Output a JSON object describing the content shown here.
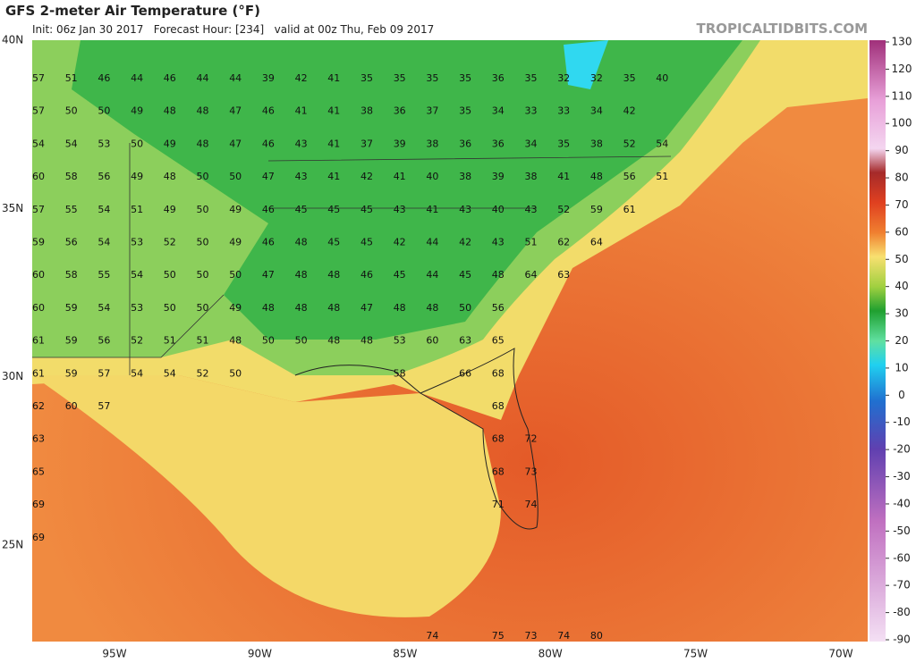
{
  "header": {
    "title": "GFS 2-meter Air Temperature (°F)",
    "subtitle": "Init: 06z Jan 30 2017   Forecast Hour: [234]   valid at 00z Thu, Feb 09 2017",
    "site": "TROPICALTIDBITS.COM"
  },
  "map": {
    "lat_labels": [
      "40N",
      "35N",
      "30N",
      "25N"
    ],
    "lon_labels": [
      "95W",
      "90W",
      "85W",
      "80W",
      "75W",
      "70W"
    ],
    "temperature_grid": [
      [
        57,
        51,
        46,
        44,
        46,
        44,
        44,
        39,
        42,
        41,
        35,
        35,
        35,
        35,
        36,
        35,
        32,
        32,
        35,
        40
      ],
      [
        57,
        50,
        50,
        49,
        48,
        48,
        47,
        46,
        41,
        41,
        38,
        36,
        37,
        35,
        34,
        33,
        33,
        34,
        42
      ],
      [
        54,
        54,
        53,
        50,
        49,
        48,
        47,
        46,
        43,
        41,
        37,
        39,
        38,
        36,
        36,
        34,
        35,
        38,
        52,
        54
      ],
      [
        60,
        58,
        56,
        49,
        48,
        50,
        50,
        47,
        43,
        41,
        42,
        41,
        40,
        38,
        39,
        38,
        41,
        48,
        56,
        51
      ],
      [
        57,
        55,
        54,
        51,
        49,
        50,
        49,
        46,
        45,
        45,
        45,
        43,
        41,
        43,
        40,
        43,
        52,
        59,
        61
      ],
      [
        59,
        56,
        54,
        53,
        52,
        50,
        49,
        46,
        48,
        45,
        45,
        42,
        44,
        42,
        43,
        51,
        62,
        64
      ],
      [
        60,
        58,
        55,
        54,
        50,
        50,
        50,
        47,
        48,
        48,
        46,
        45,
        44,
        45,
        48,
        64,
        63
      ],
      [
        60,
        59,
        54,
        53,
        50,
        50,
        49,
        48,
        48,
        48,
        47,
        48,
        48,
        50,
        56
      ],
      [
        61,
        59,
        56,
        52,
        51,
        51,
        48,
        50,
        50,
        48,
        48,
        53,
        60,
        63,
        65
      ],
      [
        61,
        59,
        57,
        54,
        54,
        52,
        50,
        null,
        null,
        null,
        null,
        58,
        null,
        66,
        68
      ],
      [
        62,
        60,
        57,
        null,
        null,
        null,
        null,
        null,
        null,
        null,
        null,
        null,
        null,
        null,
        68
      ],
      [
        63,
        null,
        null,
        null,
        null,
        null,
        null,
        null,
        null,
        null,
        null,
        null,
        null,
        null,
        68,
        72
      ],
      [
        65,
        null,
        null,
        null,
        null,
        null,
        null,
        null,
        null,
        null,
        null,
        null,
        null,
        null,
        68,
        73
      ],
      [
        69,
        null,
        null,
        null,
        null,
        null,
        null,
        null,
        null,
        null,
        null,
        null,
        null,
        null,
        71,
        74
      ],
      [
        69
      ],
      [],
      [],
      [
        null,
        null,
        null,
        null,
        null,
        null,
        null,
        null,
        null,
        null,
        null,
        null,
        74,
        null,
        75,
        73,
        74,
        80
      ]
    ]
  },
  "colorbar": {
    "ticks": [
      130,
      120,
      110,
      100,
      90,
      80,
      70,
      60,
      50,
      40,
      30,
      20,
      10,
      0,
      -10,
      -20,
      -30,
      -40,
      -50,
      -60,
      -70,
      -80,
      -90
    ]
  }
}
